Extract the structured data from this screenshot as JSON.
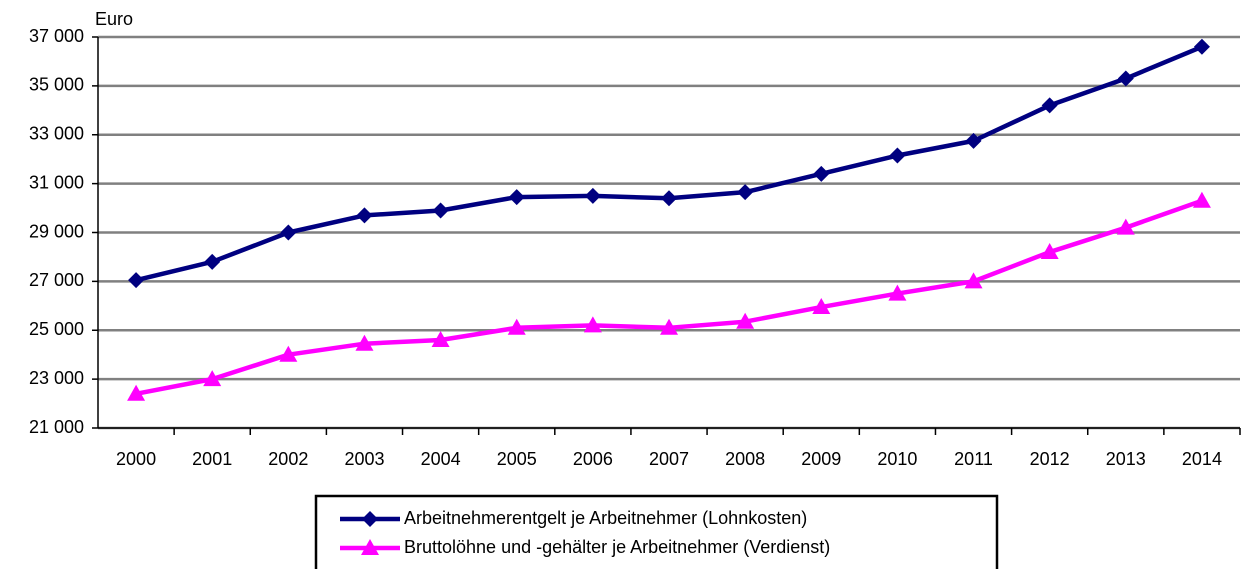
{
  "chart_data": {
    "type": "line",
    "y_label": "Euro",
    "categories": [
      "2000",
      "2001",
      "2002",
      "2003",
      "2004",
      "2005",
      "2006",
      "2007",
      "2008",
      "2009",
      "2010",
      "2011",
      "2012",
      "2013",
      "2014"
    ],
    "series": [
      {
        "name": "Arbeitnehmerentgelt je Arbeitnehmer (Lohnkosten)",
        "color": "#000080",
        "marker": "diamond",
        "values": [
          27050,
          27800,
          29000,
          29700,
          29900,
          30450,
          30500,
          30400,
          30650,
          31400,
          32150,
          32750,
          34200,
          35300,
          36600
        ]
      },
      {
        "name": "Bruttolöhne und -gehälter je Arbeitnehmer (Verdienst)",
        "color": "#ff00ff",
        "marker": "triangle",
        "values": [
          22400,
          23000,
          24000,
          24450,
          24600,
          25100,
          25200,
          25100,
          25350,
          25950,
          26500,
          27000,
          28200,
          29200,
          30300
        ]
      }
    ],
    "ylim": [
      21000,
      37000
    ],
    "yticks": [
      {
        "value": 21000,
        "label": "21 000"
      },
      {
        "value": 23000,
        "label": "23 000"
      },
      {
        "value": 25000,
        "label": "25 000"
      },
      {
        "value": 27000,
        "label": "27 000"
      },
      {
        "value": 29000,
        "label": "29 000"
      },
      {
        "value": 31000,
        "label": "31 000"
      },
      {
        "value": 33000,
        "label": "33 000"
      },
      {
        "value": 35000,
        "label": "35 000"
      },
      {
        "value": 37000,
        "label": "37 000"
      }
    ],
    "grid": true,
    "legend": "bottom"
  }
}
